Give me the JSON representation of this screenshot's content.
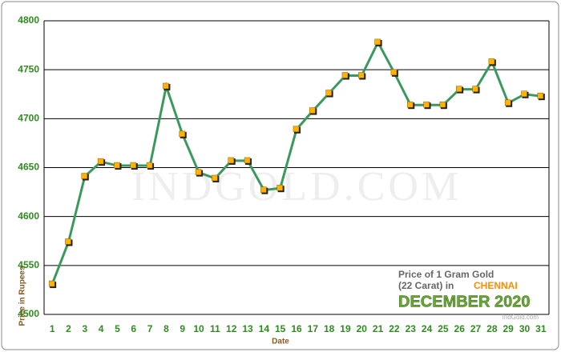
{
  "chart_data": {
    "type": "line",
    "watermark": "INDGOLD.COM",
    "y_label": "Price in Rupees",
    "x_label": "Date",
    "legend_lines": [
      "Price of 1 Gram Gold",
      "(22 Carat) in"
    ],
    "city": "CHENNAI",
    "period": "DECEMBER 2020",
    "source": "IndGold.com",
    "x": [
      1,
      2,
      3,
      4,
      5,
      6,
      7,
      8,
      9,
      10,
      11,
      12,
      13,
      14,
      15,
      16,
      17,
      18,
      19,
      20,
      21,
      22,
      23,
      24,
      25,
      26,
      27,
      28,
      29,
      30,
      31
    ],
    "xlim": [
      0.5,
      31.5
    ],
    "series": [
      {
        "name": "Price",
        "color": "#3a9a5e",
        "values": [
          4531,
          4574,
          4641,
          4656,
          4652,
          4652,
          4652,
          4733,
          4684,
          4645,
          4639,
          4657,
          4657,
          4627,
          4629,
          4689,
          4708,
          4726,
          4744,
          4744,
          4778,
          4747,
          4714,
          4714,
          4714,
          4730,
          4730,
          4758,
          4716,
          4725,
          4723
        ]
      }
    ],
    "marker_color": "#ffb300",
    "ylim": [
      4500,
      4800
    ],
    "yticks": [
      4500,
      4550,
      4600,
      4650,
      4700,
      4750,
      4800
    ],
    "grid": true
  }
}
